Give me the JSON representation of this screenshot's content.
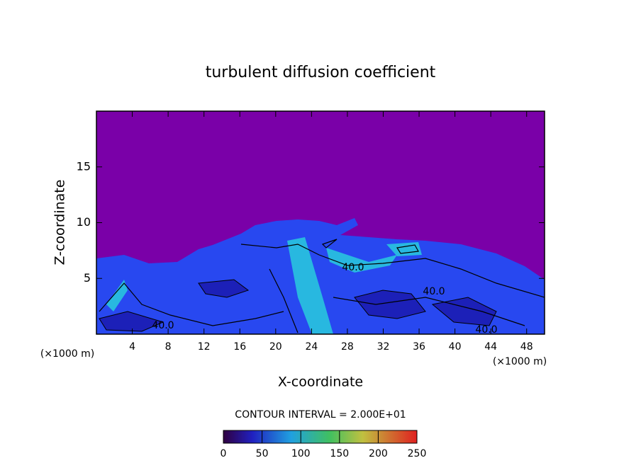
{
  "chart_data": {
    "type": "contour",
    "title": "turbulent diffusion coefficient",
    "x_label": "X-coordinate",
    "y_label": "Z-coordinate",
    "x_unit": "(×1000 m)",
    "xlim": [
      0,
      50
    ],
    "xticks": [
      4,
      8,
      12,
      16,
      20,
      24,
      28,
      32,
      36,
      40,
      44,
      48
    ],
    "ylim": [
      0,
      20
    ],
    "yticks": [
      5,
      10,
      15
    ],
    "contour_interval": "CONTOUR INTERVAL = 2.000E+01",
    "contour_labels": [
      "40.0",
      "40.0",
      "40.0",
      "40.0"
    ],
    "clim": [
      0,
      250
    ],
    "cticks": [
      0,
      50,
      100,
      150,
      200,
      250
    ]
  }
}
